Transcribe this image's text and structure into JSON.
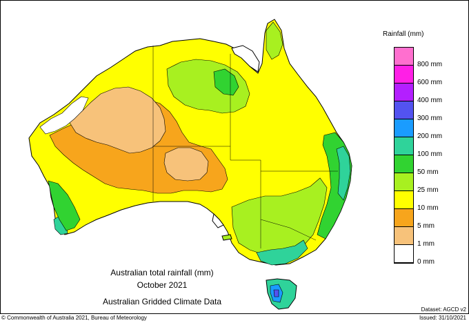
{
  "legend": {
    "title": "Rainfall (mm)",
    "classes": [
      {
        "label": "",
        "color": "#ff6fcf"
      },
      {
        "label": "800 mm",
        "color": "#ff1fe6"
      },
      {
        "label": "600 mm",
        "color": "#b31fff"
      },
      {
        "label": "400 mm",
        "color": "#5353f0"
      },
      {
        "label": "300 mm",
        "color": "#1a9cff"
      },
      {
        "label": "200 mm",
        "color": "#2fd39a"
      },
      {
        "label": "100 mm",
        "color": "#31d331"
      },
      {
        "label": "50 mm",
        "color": "#a8f020"
      },
      {
        "label": "25 mm",
        "color": "#ffff00"
      },
      {
        "label": "10 mm",
        "color": "#f7a51c"
      },
      {
        "label": "5 mm",
        "color": "#f7c27a"
      },
      {
        "label": "1 mm",
        "color": "#ffffff"
      }
    ],
    "bottom_label": "0 mm"
  },
  "caption": {
    "line1": "Australian total rainfall (mm)",
    "line2": "October 2021",
    "line3": "Australian Gridded Climate Data"
  },
  "footer": {
    "dataset": "Dataset: AGCD v2",
    "copyright": "© Commonwealth of Australia 2021, Bureau of Meteorology",
    "issued": "Issued: 31/10/2021"
  }
}
